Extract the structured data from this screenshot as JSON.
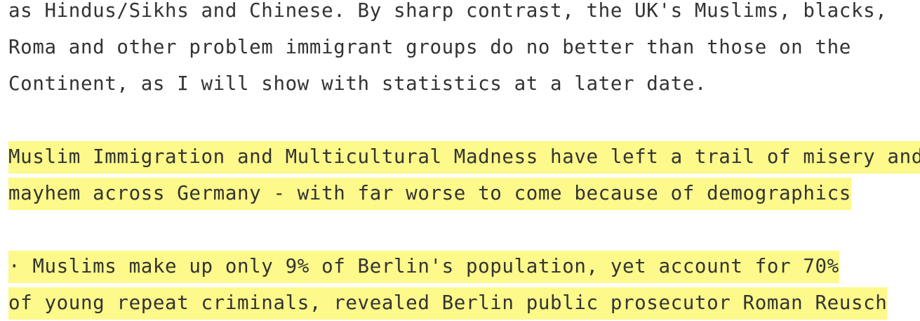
{
  "paragraphs": [
    {
      "highlighted": false,
      "lines": [
        "as Hindus/Sikhs and Chinese. By sharp contrast, the UK's Muslims, blacks,",
        "Roma and other problem immigrant groups do no better than those on the",
        "Continent, as I will show with statistics at a later date."
      ]
    },
    {
      "highlighted": true,
      "lines": [
        "Muslim Immigration and Multicultural Madness have left a trail of misery and",
        "mayhem across Germany - with far worse to come because of demographics"
      ]
    },
    {
      "highlighted": true,
      "lines": [
        "· Muslims make up only 9% of Berlin's population, yet account for 70%",
        "of young repeat criminals, revealed Berlin public prosecutor Roman Reusch"
      ]
    }
  ],
  "colors": {
    "text": "#333333",
    "highlight": "#fdf98a",
    "background": "#ffffff"
  }
}
